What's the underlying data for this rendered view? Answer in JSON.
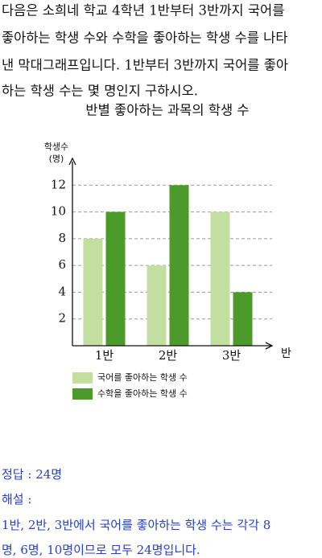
{
  "problem": [
    "다음은 소희네 학교 4학년 1반부터 3반까지 국어를",
    "좋아하는 학생 수와 수학을 좋아하는 학생 수를 나타",
    "낸 막대그래프입니다. 1반부터 3반까지 국어를 좋아",
    "하는 학생 수는 몇 명인지 구하시오."
  ],
  "chart_data": {
    "type": "bar",
    "title": "반별 좋아하는 과목의 학생 수",
    "y_label": [
      "학생수",
      "(명)"
    ],
    "x_label": "반",
    "categories": [
      "1반",
      "2반",
      "3반"
    ],
    "series": [
      {
        "name": "국어를 좋아하는 학생 수",
        "color": "#c3dfa0",
        "values": [
          8,
          6,
          10
        ]
      },
      {
        "name": "수학을 좋아하는 학생 수",
        "color": "#4c9a2a",
        "values": [
          10,
          12,
          4
        ]
      }
    ],
    "ylim": [
      0,
      14
    ],
    "yticks": [
      2,
      4,
      6,
      8,
      10,
      12
    ],
    "grid": true
  },
  "answer": {
    "result": "정답 : 24명",
    "explanation_label": "해설 :",
    "explanation": [
      "1반, 2반, 3반에서 국어를 좋아하는 학생 수는 각각 8",
      "명, 6명, 10명이므로 모두 24명입니다."
    ]
  }
}
